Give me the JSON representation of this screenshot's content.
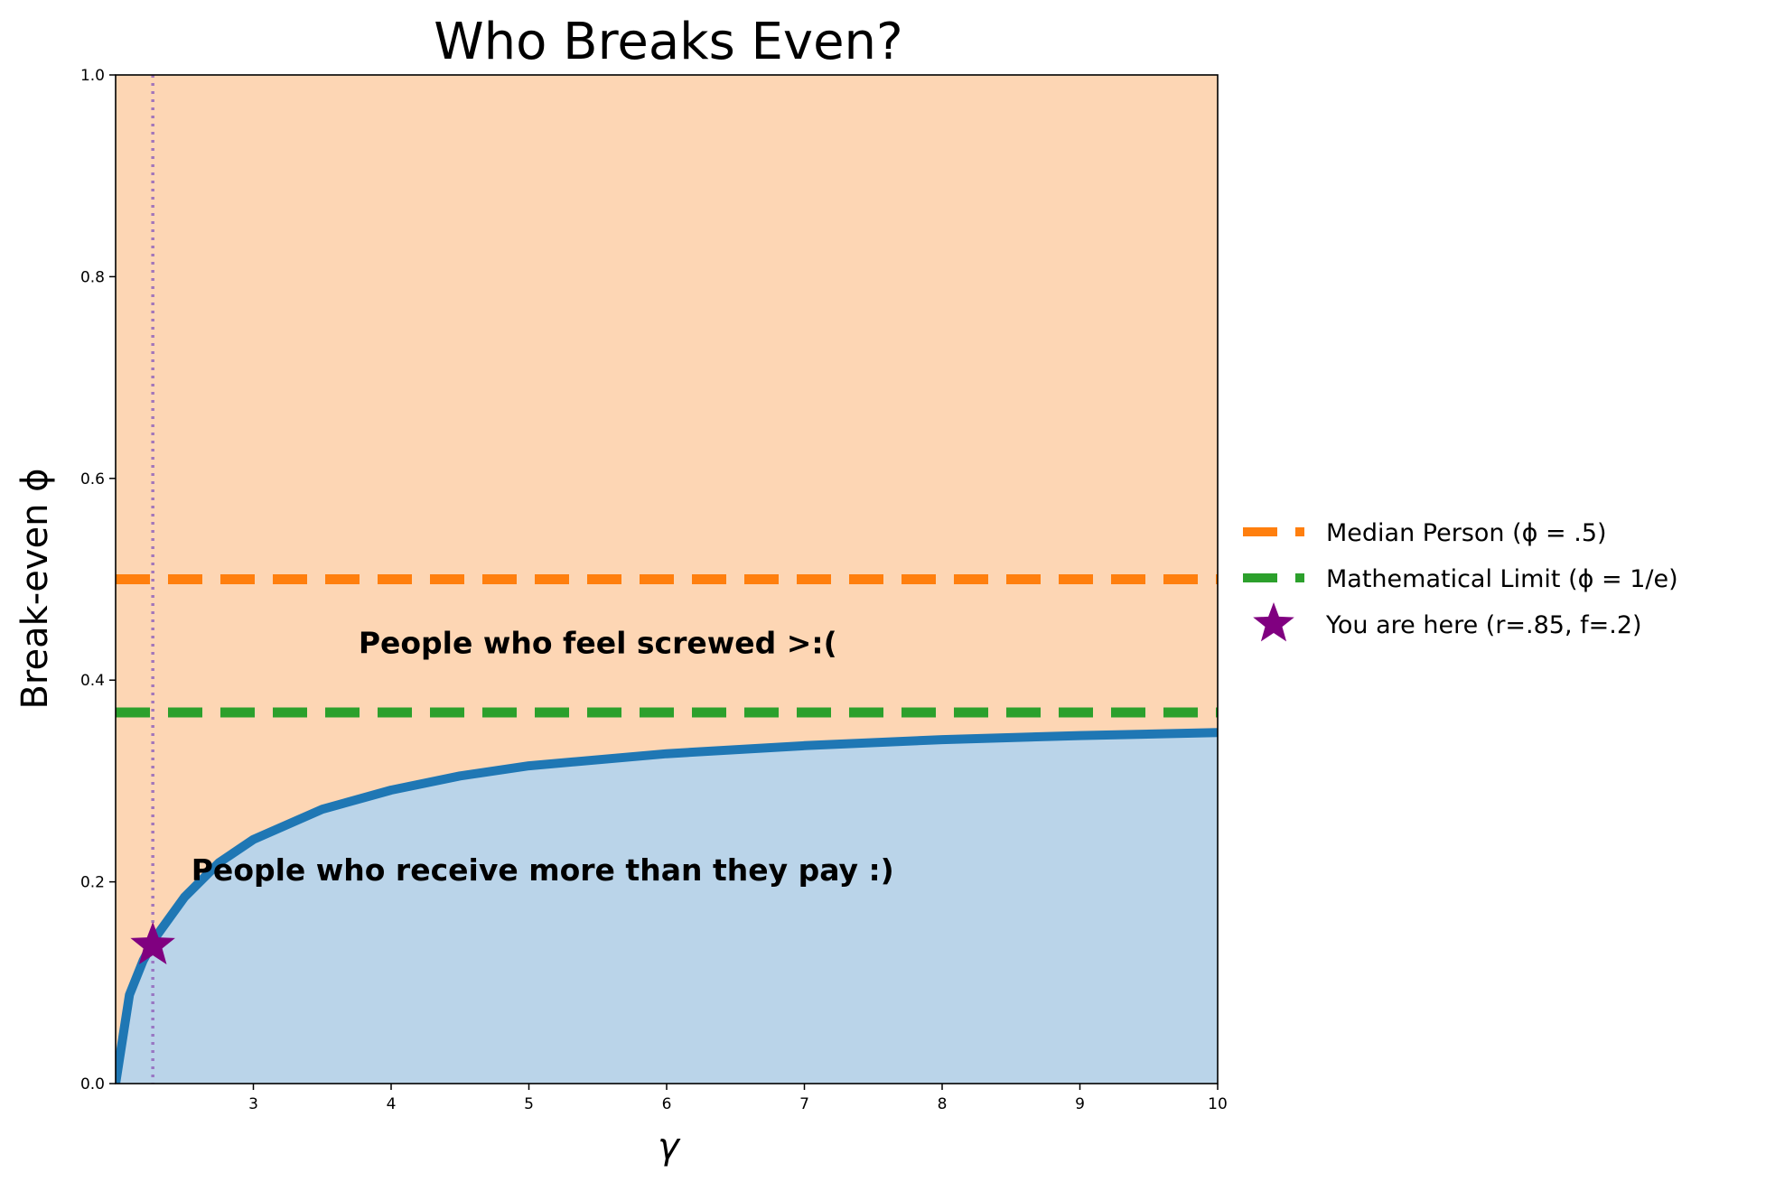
{
  "chart_data": {
    "type": "line",
    "title": "Who Breaks Even?",
    "xlabel": "γ",
    "ylabel": "Break-even ϕ",
    "xlim": [
      2,
      10
    ],
    "ylim": [
      0,
      1
    ],
    "xticks": [
      3,
      4,
      5,
      6,
      7,
      8,
      9,
      10
    ],
    "yticks": [
      0.0,
      0.2,
      0.4,
      0.6,
      0.8,
      1.0
    ],
    "ytick_labels": [
      "0.0",
      "0.2",
      "0.4",
      "0.6",
      "0.8",
      "1.0"
    ],
    "grid": false,
    "legend_placement": "outside-right",
    "series": [
      {
        "style": "solid",
        "color": "#1f77b4",
        "x": [
          2.0,
          2.1,
          2.2,
          2.3,
          2.5,
          2.75,
          3.0,
          3.5,
          4.0,
          4.5,
          5.0,
          6.0,
          7.0,
          8.0,
          9.0,
          10.0
        ],
        "y": [
          0.0,
          0.088,
          0.122,
          0.147,
          0.185,
          0.219,
          0.242,
          0.272,
          0.291,
          0.305,
          0.315,
          0.327,
          0.335,
          0.341,
          0.345,
          0.348
        ]
      }
    ],
    "fills": [
      {
        "region": "above-curve",
        "color": "#fdd6b4"
      },
      {
        "region": "below-curve",
        "color": "#bad4e9"
      }
    ],
    "hlines": [
      {
        "name": "Median Person   (ϕ = .5)",
        "y": 0.5,
        "color": "#ff7f0e",
        "style": "dashed"
      },
      {
        "name": "Mathematical Limit   (ϕ = 1/e)",
        "y": 0.3679,
        "color": "#2ca02c",
        "style": "dashed"
      }
    ],
    "vlines": [
      {
        "x": 2.27,
        "color": "#9467bd",
        "style": "dotted"
      }
    ],
    "points": [
      {
        "name": "You are here   (r=.85, f=.2)",
        "x": 2.27,
        "y": 0.137,
        "color": "#800080",
        "marker": "star"
      }
    ],
    "annotations": [
      {
        "text": "People who feel screwed >:(",
        "x": 5.5,
        "y": 0.435
      },
      {
        "text": "People who receive more than they pay :)",
        "x": 5.1,
        "y": 0.21
      }
    ]
  }
}
